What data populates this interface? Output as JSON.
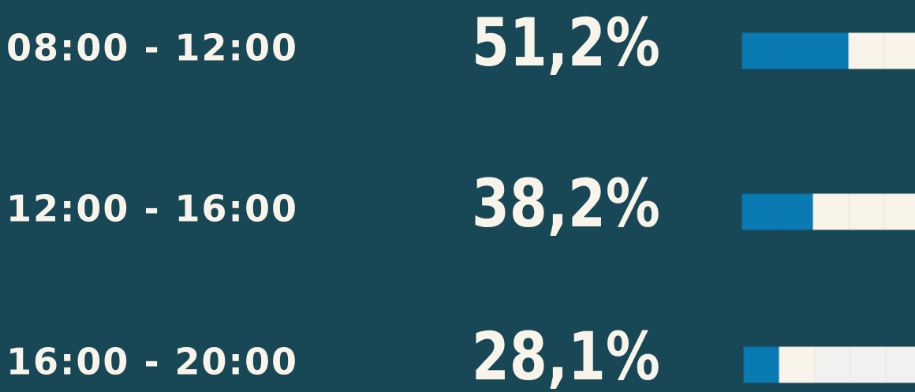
{
  "rows": [
    {
      "label": "08:00 - 12:00",
      "value": "51,2%",
      "filled": 3
    },
    {
      "label": "12:00 - 16:00",
      "value": "38,2%",
      "filled": 2
    },
    {
      "label": "16:00 - 20:00",
      "value": "28,1%",
      "filled": 1
    }
  ]
}
